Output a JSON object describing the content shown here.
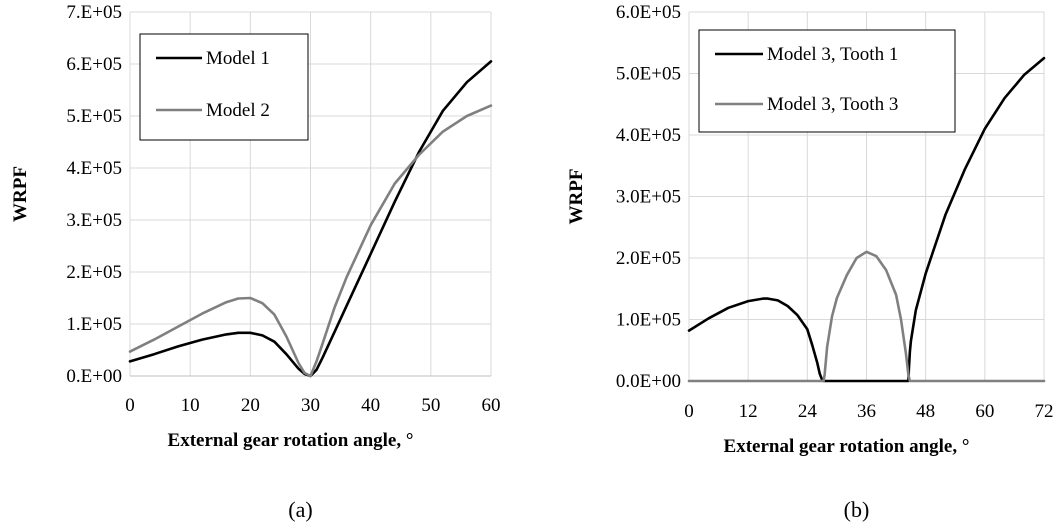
{
  "chart_data": [
    {
      "type": "line",
      "panel_label": "(a)",
      "xlabel": "External  gear rotation  angle, °",
      "ylabel": "WRPF",
      "xlim": [
        0,
        60
      ],
      "ylim": [
        0,
        700000
      ],
      "xticks": [
        0,
        10,
        20,
        30,
        40,
        50,
        60
      ],
      "xtick_labels": [
        "0",
        "10",
        "20",
        "30",
        "40",
        "50",
        "60"
      ],
      "yticks": [
        0,
        100000,
        200000,
        300000,
        400000,
        500000,
        600000,
        700000
      ],
      "ytick_labels": [
        "0.E+00",
        "1.E+05",
        "2.E+05",
        "3.E+05",
        "4.E+05",
        "5.E+05",
        "6.E+05",
        "7.E+05"
      ],
      "grid": true,
      "legend_position": "top-left",
      "series": [
        {
          "name": "Model 1",
          "color": "#000000",
          "x": [
            0,
            4,
            8,
            12,
            16,
            18,
            20,
            22,
            24,
            26,
            28,
            29,
            30,
            31,
            32,
            34,
            36,
            40,
            44,
            48,
            52,
            56,
            60
          ],
          "y": [
            28000,
            42000,
            57000,
            70000,
            80000,
            83000,
            83000,
            78000,
            66000,
            42000,
            14000,
            4000,
            0,
            12000,
            35000,
            85000,
            135000,
            235000,
            335000,
            430000,
            510000,
            565000,
            605000
          ]
        },
        {
          "name": "Model 2",
          "color": "#808080",
          "x": [
            0,
            4,
            8,
            12,
            16,
            18,
            20,
            22,
            24,
            26,
            28,
            29,
            30,
            31,
            32,
            34,
            36,
            40,
            44,
            48,
            52,
            56,
            60
          ],
          "y": [
            47000,
            70000,
            95000,
            120000,
            142000,
            149000,
            150000,
            140000,
            118000,
            76000,
            25000,
            6000,
            0,
            28000,
            62000,
            132000,
            190000,
            290000,
            370000,
            425000,
            470000,
            500000,
            520000
          ]
        }
      ]
    },
    {
      "type": "line",
      "panel_label": "(b)",
      "xlabel": "External  gear rotation  angle, °",
      "ylabel": "WRPF",
      "xlim": [
        0,
        72
      ],
      "ylim": [
        0,
        600000
      ],
      "xticks": [
        0,
        12,
        24,
        36,
        48,
        60,
        72
      ],
      "xtick_labels": [
        "0",
        "12",
        "24",
        "36",
        "48",
        "60",
        "72"
      ],
      "yticks": [
        0,
        100000,
        200000,
        300000,
        400000,
        500000,
        600000
      ],
      "ytick_labels": [
        "0.0E+00",
        "1.0E+05",
        "2.0E+05",
        "3.0E+05",
        "4.0E+05",
        "5.0E+05",
        "6.0E+05"
      ],
      "grid": true,
      "legend_position": "top-left",
      "series": [
        {
          "name": "Model 3, Tooth 1",
          "color": "#000000",
          "x": [
            0,
            4,
            8,
            12,
            15,
            16,
            18,
            20,
            22,
            24,
            25,
            26,
            26.5,
            27,
            27.3,
            27.5,
            30,
            36,
            42,
            44.5,
            44.6,
            44.8,
            45,
            46,
            48,
            52,
            56,
            60,
            64,
            68,
            72
          ],
          "y": [
            82000,
            102000,
            119000,
            130000,
            134000,
            134000,
            131000,
            122000,
            107000,
            84000,
            58000,
            30000,
            12000,
            2000,
            0,
            0,
            0,
            0,
            0,
            0,
            20000,
            48000,
            65000,
            115000,
            175000,
            270000,
            345000,
            410000,
            460000,
            498000,
            525000
          ]
        },
        {
          "name": "Model 3, Tooth 3",
          "color": "#808080",
          "x": [
            0,
            27.3,
            27.5,
            28,
            29,
            30,
            32,
            34,
            36,
            38,
            40,
            42,
            43,
            44,
            44.5,
            44.8,
            72
          ],
          "y": [
            0,
            0,
            10000,
            55000,
            105000,
            135000,
            172000,
            200000,
            210000,
            203000,
            180000,
            140000,
            100000,
            45000,
            10000,
            0,
            0
          ]
        }
      ]
    }
  ]
}
